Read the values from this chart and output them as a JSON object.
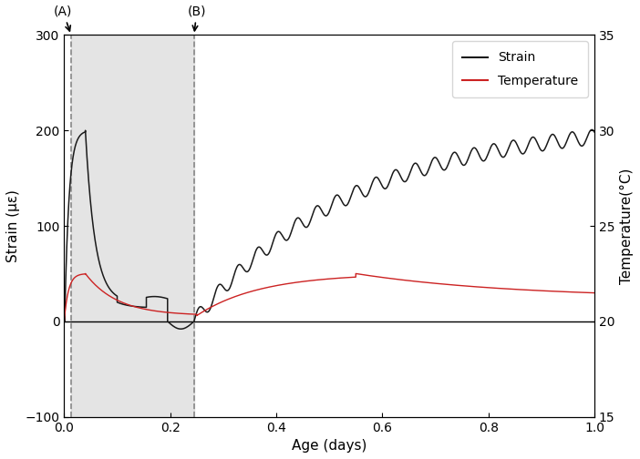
{
  "title": "",
  "xlabel": "Age (days)",
  "ylabel_left": "Strain (με)",
  "ylabel_right": "Temperature(°C)",
  "xlim": [
    0,
    1
  ],
  "ylim_left": [
    -100,
    300
  ],
  "ylim_right": [
    15,
    35
  ],
  "xticks": [
    0,
    0.2,
    0.4,
    0.6,
    0.8,
    1.0
  ],
  "yticks_left": [
    -100,
    0,
    100,
    200,
    300
  ],
  "yticks_right": [
    15,
    20,
    25,
    30,
    35
  ],
  "point_A": 0.013,
  "point_B": 0.245,
  "shade_color": "#d9d9d9",
  "shade_alpha": 0.7,
  "strain_color": "#1a1a1a",
  "temp_color": "#cc2222",
  "legend_strain": "Strain",
  "legend_temp": "Temperature",
  "annotation_A": "(A)",
  "annotation_B": "(B)",
  "figsize": [
    7.02,
    5.04
  ],
  "dpi": 100
}
